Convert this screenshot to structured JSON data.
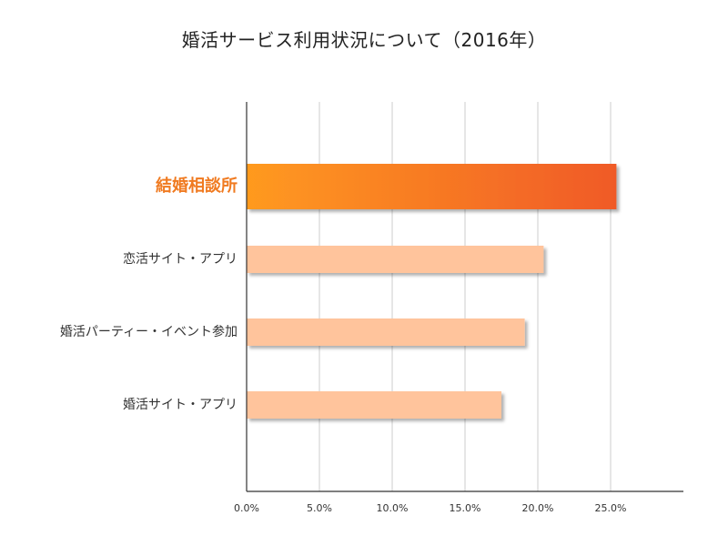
{
  "chart_data": {
    "type": "bar",
    "orientation": "horizontal",
    "title": "婚活サービス利用状況について（2016年）",
    "categories": [
      "結婚相談所",
      "恋活サイト・アプリ",
      "婚活パーティー・イベント参加",
      "婚活サイト・アプリ"
    ],
    "values": [
      25.4,
      20.4,
      19.1,
      17.5
    ],
    "highlight_index": 0,
    "x_ticks": [
      "0.0%",
      "5.0%",
      "10.0%",
      "15.0%",
      "20.0%",
      "25.0%"
    ],
    "xlim": [
      0,
      30
    ],
    "grid": true,
    "colors": {
      "highlight_start": "#ff9a1f",
      "highlight_end": "#f05a28",
      "highlight_label": "#f07a20",
      "bar": "#ffc49c",
      "grid": "#cccccc",
      "axis": "#333333"
    }
  }
}
